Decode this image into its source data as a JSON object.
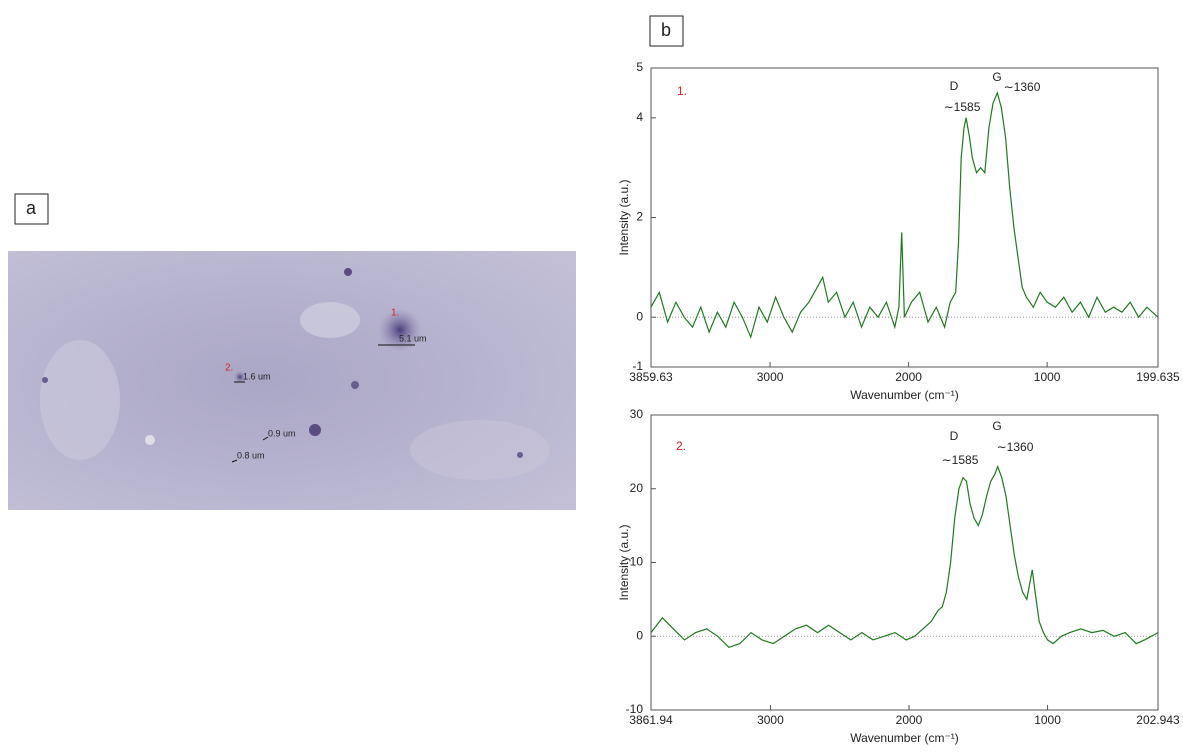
{
  "panels": [
    "a",
    "b"
  ],
  "micrograph": {
    "markers": [
      "1.",
      "2."
    ],
    "scale_labels": [
      "5.1 um",
      "1.6 um",
      "0.9 um",
      "0.8 um"
    ]
  },
  "chart_data": [
    {
      "type": "line",
      "label": "1.",
      "xlabel": "Wavenumber (cm⁻¹)",
      "ylabel": "Intensity (a.u.)",
      "peaks": [
        {
          "name": "D",
          "label": "∼1585"
        },
        {
          "name": "G",
          "label": "∼1360"
        }
      ],
      "color": "#1f7a1f",
      "xlim": [
        3859.63,
        199.635
      ],
      "ylim": [
        -1,
        5
      ],
      "xticks": [
        3859.63,
        3000,
        2000,
        1000,
        199.635
      ],
      "yticks": [
        -1,
        0,
        2,
        4,
        5
      ],
      "x": [
        3860,
        3800,
        3740,
        3680,
        3620,
        3560,
        3500,
        3440,
        3380,
        3320,
        3260,
        3200,
        3140,
        3080,
        3020,
        2960,
        2900,
        2840,
        2780,
        2720,
        2660,
        2620,
        2580,
        2520,
        2460,
        2400,
        2340,
        2280,
        2220,
        2160,
        2100,
        2070,
        2050,
        2030,
        1980,
        1920,
        1860,
        1800,
        1740,
        1700,
        1660,
        1640,
        1620,
        1600,
        1585,
        1560,
        1540,
        1510,
        1480,
        1450,
        1420,
        1390,
        1360,
        1330,
        1300,
        1270,
        1240,
        1210,
        1180,
        1150,
        1100,
        1050,
        1000,
        940,
        880,
        820,
        760,
        700,
        640,
        580,
        520,
        460,
        400,
        340,
        280,
        200
      ],
      "values": [
        0.2,
        0.5,
        -0.1,
        0.3,
        0.0,
        -0.2,
        0.2,
        -0.3,
        0.1,
        -0.2,
        0.3,
        0.0,
        -0.4,
        0.2,
        -0.1,
        0.4,
        0.0,
        -0.3,
        0.1,
        0.3,
        0.6,
        0.8,
        0.3,
        0.5,
        0.0,
        0.3,
        -0.2,
        0.2,
        0.0,
        0.3,
        -0.2,
        0.2,
        1.7,
        0.0,
        0.3,
        0.5,
        -0.1,
        0.2,
        -0.2,
        0.3,
        0.5,
        1.5,
        3.2,
        3.8,
        4.0,
        3.6,
        3.2,
        2.9,
        3.0,
        2.9,
        3.8,
        4.3,
        4.5,
        4.2,
        3.6,
        2.6,
        1.8,
        1.2,
        0.6,
        0.4,
        0.2,
        0.5,
        0.3,
        0.2,
        0.4,
        0.1,
        0.3,
        0.0,
        0.4,
        0.1,
        0.2,
        0.1,
        0.3,
        0.0,
        0.2,
        0.0
      ]
    },
    {
      "type": "line",
      "label": "2.",
      "xlabel": "Wavenumber (cm⁻¹)",
      "ylabel": "Intensity (a.u.)",
      "peaks": [
        {
          "name": "D",
          "label": "∼1585"
        },
        {
          "name": "G",
          "label": "∼1360"
        }
      ],
      "color": "#1f7a1f",
      "xlim": [
        3861.94,
        202.943
      ],
      "ylim": [
        -10,
        30
      ],
      "xticks": [
        3861.94,
        3000,
        2000,
        1000,
        202.943
      ],
      "yticks": [
        -10,
        0,
        10,
        20,
        30
      ],
      "x": [
        3862,
        3780,
        3700,
        3620,
        3540,
        3460,
        3380,
        3300,
        3220,
        3140,
        3060,
        2980,
        2900,
        2820,
        2740,
        2660,
        2580,
        2500,
        2420,
        2340,
        2260,
        2180,
        2100,
        2020,
        1960,
        1900,
        1840,
        1790,
        1760,
        1730,
        1700,
        1670,
        1640,
        1610,
        1585,
        1560,
        1530,
        1500,
        1470,
        1440,
        1410,
        1380,
        1360,
        1330,
        1300,
        1270,
        1240,
        1210,
        1180,
        1150,
        1130,
        1110,
        1090,
        1060,
        1030,
        1000,
        960,
        900,
        840,
        760,
        680,
        600,
        520,
        440,
        360,
        300,
        203
      ],
      "values": [
        0.5,
        2.5,
        1.0,
        -0.5,
        0.5,
        1.0,
        0.0,
        -1.5,
        -1.0,
        0.5,
        -0.5,
        -1.0,
        0.0,
        1.0,
        1.5,
        0.5,
        1.5,
        0.5,
        -0.5,
        0.5,
        -0.5,
        0.0,
        0.5,
        -0.5,
        0.0,
        1.0,
        2.0,
        3.5,
        4.0,
        6.0,
        10.0,
        16.0,
        20.0,
        21.5,
        21.0,
        18.0,
        16.0,
        15.0,
        16.5,
        19.0,
        21.0,
        22.0,
        23.0,
        21.5,
        19.0,
        15.0,
        11.0,
        8.0,
        6.0,
        5.0,
        7.0,
        9.0,
        6.0,
        2.0,
        0.5,
        -0.5,
        -1.0,
        0.0,
        0.5,
        1.0,
        0.5,
        0.8,
        0.0,
        0.5,
        -1.0,
        -0.5,
        0.5
      ]
    }
  ]
}
